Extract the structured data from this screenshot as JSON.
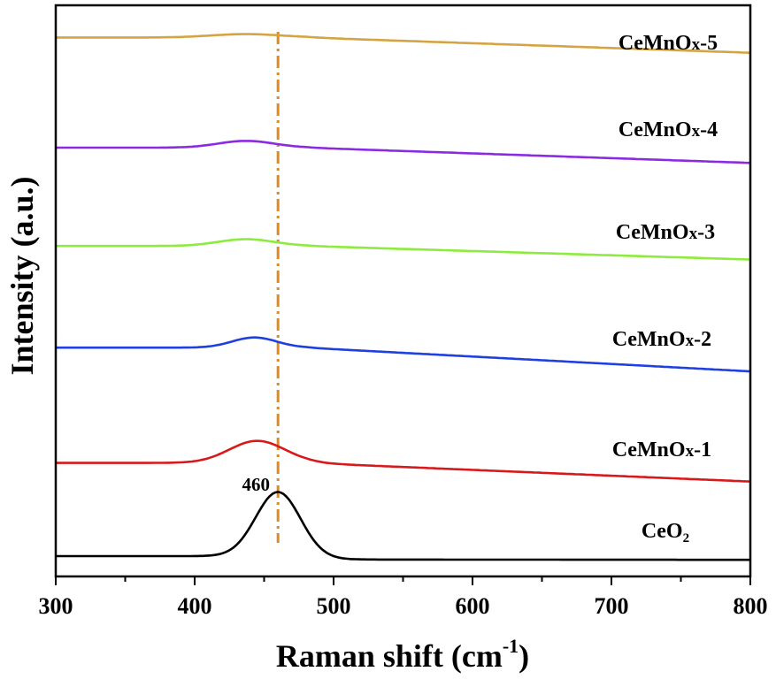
{
  "chart_data": {
    "type": "line",
    "title": "",
    "xlabel": "Raman shift (cm",
    "xlabel_sup": "-1",
    "xlabel_close": ")",
    "ylabel": "Intensity (a.u.)",
    "xlim": [
      300,
      800
    ],
    "xticks": [
      "300",
      "400",
      "500",
      "600",
      "700",
      "800"
    ],
    "yticks_labeled": false,
    "grid": false,
    "legend": "labels placed beside each curve at the right",
    "annotation": {
      "text": "460",
      "x": 460,
      "reference_line": {
        "x": 460,
        "style": "dash-dot",
        "color": "#E08A1E"
      }
    },
    "series": [
      {
        "name": "CeO",
        "name_sub": "2",
        "color": "#000000",
        "baseline": 0.0,
        "peak_x": 460,
        "peak_height": 0.38,
        "peak_width": 16,
        "slope": -0.002,
        "tail": -0.02
      },
      {
        "name": "CeMnOx-1",
        "color": "#D7191C",
        "baseline": 0.55,
        "peak_x": 445,
        "peak_height": 0.13,
        "peak_width": 20,
        "slope": -0.11,
        "tail": 0.0
      },
      {
        "name": "CeMnOx-2",
        "color": "#1F3FE0",
        "baseline": 1.23,
        "peak_x": 443,
        "peak_height": 0.06,
        "peak_width": 16,
        "slope": -0.14,
        "tail": 0.0
      },
      {
        "name": "CeMnOx-3",
        "color": "#8CEB3C",
        "baseline": 1.83,
        "peak_x": 437,
        "peak_height": 0.04,
        "peak_width": 20,
        "slope": -0.08,
        "tail": 0.0
      },
      {
        "name": "CeMnOx-4",
        "color": "#8A2BE2",
        "baseline": 2.41,
        "peak_x": 437,
        "peak_height": 0.04,
        "peak_width": 20,
        "slope": -0.09,
        "tail": 0.0
      },
      {
        "name": "CeMnOx-5",
        "color": "#D4A443",
        "baseline": 3.06,
        "peak_x": 437,
        "peak_height": 0.02,
        "peak_width": 25,
        "slope": -0.09,
        "tail": 0.0
      }
    ]
  }
}
